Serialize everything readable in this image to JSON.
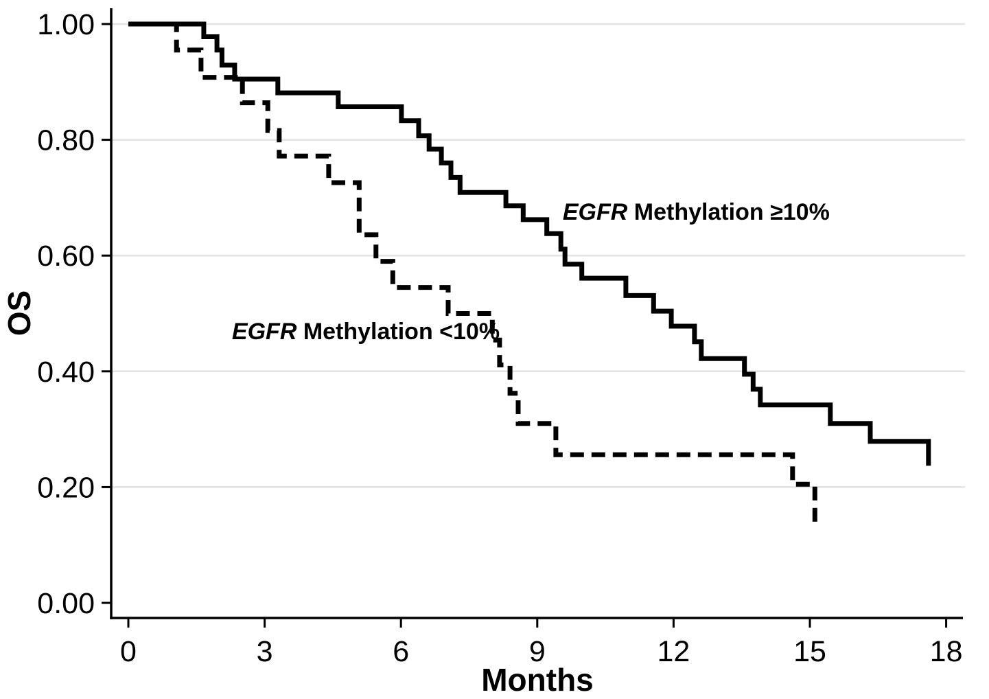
{
  "figure": {
    "background": "#ffffff",
    "description": "Kaplan-Meier overall survival curves by EGFR methylation status"
  },
  "chart_data": {
    "type": "line",
    "subtype": "kaplan-meier-step",
    "title": "",
    "xlabel": "Months",
    "ylabel": "OS",
    "xlim": [
      0,
      18
    ],
    "ylim": [
      0.0,
      1.0
    ],
    "xticks": [
      0,
      3,
      6,
      9,
      12,
      15,
      18
    ],
    "yticks": [
      "0.00",
      "0.20",
      "0.40",
      "0.60",
      "0.80",
      "1.00"
    ],
    "grid": "horizontal-gridlines-at-0.20-steps-except-zero",
    "gridline_color": "#e3e3e3",
    "line_color": "#000000",
    "legend_position": "inline-annotations",
    "series": [
      {
        "name": "EGFR Methylation ≥10%",
        "line_style": "solid",
        "points_time_months_vs_survival": [
          [
            0,
            1.0
          ],
          [
            1.66,
            0.978
          ],
          [
            1.95,
            0.955
          ],
          [
            2.06,
            0.929
          ],
          [
            2.34,
            0.905
          ],
          [
            3.29,
            0.881
          ],
          [
            4.62,
            0.857
          ],
          [
            6.01,
            0.833
          ],
          [
            6.39,
            0.807
          ],
          [
            6.62,
            0.784
          ],
          [
            6.89,
            0.76
          ],
          [
            7.1,
            0.735
          ],
          [
            7.3,
            0.709
          ],
          [
            8.31,
            0.686
          ],
          [
            8.69,
            0.662
          ],
          [
            9.21,
            0.638
          ],
          [
            9.52,
            0.611
          ],
          [
            9.61,
            0.585
          ],
          [
            9.98,
            0.561
          ],
          [
            10.95,
            0.531
          ],
          [
            11.56,
            0.504
          ],
          [
            11.95,
            0.478
          ],
          [
            12.46,
            0.451
          ],
          [
            12.61,
            0.422
          ],
          [
            13.56,
            0.395
          ],
          [
            13.75,
            0.369
          ],
          [
            13.91,
            0.342
          ],
          [
            15.45,
            0.31
          ],
          [
            16.33,
            0.279
          ],
          [
            17.61,
            0.237
          ]
        ]
      },
      {
        "name": "EGFR Methylation <10%",
        "line_style": "dashed",
        "points_time_months_vs_survival": [
          [
            0,
            1.0
          ],
          [
            1.06,
            0.955
          ],
          [
            1.6,
            0.908
          ],
          [
            2.51,
            0.864
          ],
          [
            3.07,
            0.816
          ],
          [
            3.32,
            0.772
          ],
          [
            4.41,
            0.726
          ],
          [
            5.08,
            0.636
          ],
          [
            5.45,
            0.59
          ],
          [
            5.82,
            0.545
          ],
          [
            7.04,
            0.5
          ],
          [
            8.01,
            0.454
          ],
          [
            8.17,
            0.411
          ],
          [
            8.4,
            0.362
          ],
          [
            8.58,
            0.31
          ],
          [
            9.41,
            0.256
          ],
          [
            14.62,
            0.205
          ],
          [
            15.11,
            0.14
          ]
        ]
      }
    ],
    "annotations": [
      {
        "text_italic": "EGFR",
        "text_rest": " Methylation ≥10%",
        "x_months": 9.56,
        "y_os": 0.676,
        "series": "solid"
      },
      {
        "text_italic": "EGFR",
        "text_rest": " Methylation <10%",
        "x_months": 2.28,
        "y_os": 0.47,
        "series": "dashed"
      }
    ]
  }
}
